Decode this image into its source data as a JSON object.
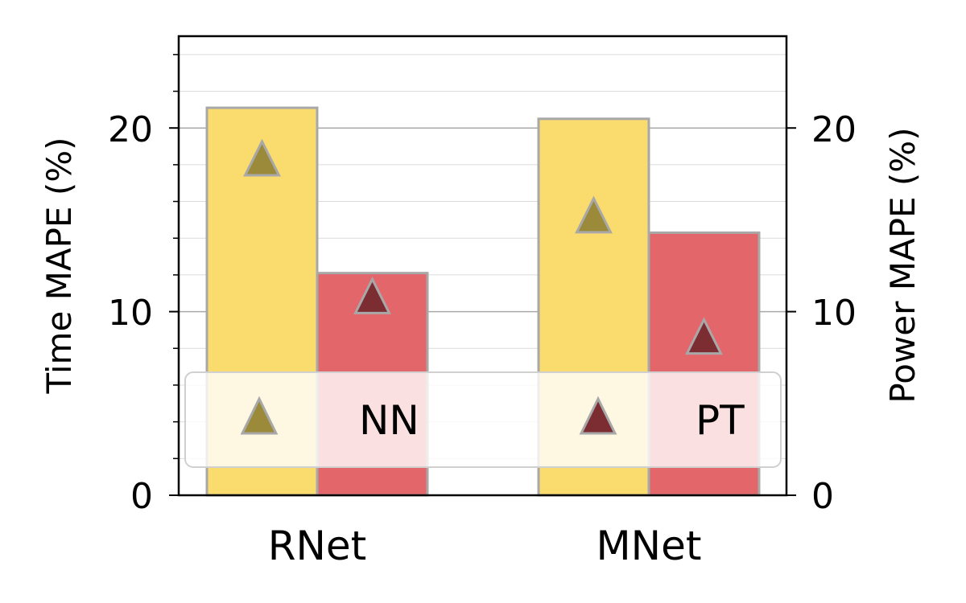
{
  "chart_data": {
    "type": "bar",
    "categories": [
      "RNet",
      "MNet"
    ],
    "bar_series": [
      {
        "values": [
          21.1,
          20.5
        ],
        "color": "#fadb6e"
      },
      {
        "values": [
          12.1,
          14.3
        ],
        "color": "#e3666a"
      }
    ],
    "marker_series": [
      {
        "name": "NN",
        "values": [
          18.3,
          15.2
        ],
        "color": "#9b8a3a"
      },
      {
        "name": "PT",
        "values": [
          10.8,
          8.6
        ],
        "color": "#7b2d32"
      }
    ],
    "ylabel": "Time MAPE (%)",
    "ylabel_right": "Power MAPE (%)",
    "ylim": [
      0,
      25
    ],
    "yticks": [
      "0",
      "10",
      "20"
    ],
    "yticks_right": [
      "0",
      "10",
      "20"
    ],
    "grid": true,
    "legend_position": "lower-center",
    "bar_edge_color": "#a8a8a8",
    "marker_edge_color": "#a8a8a8"
  }
}
